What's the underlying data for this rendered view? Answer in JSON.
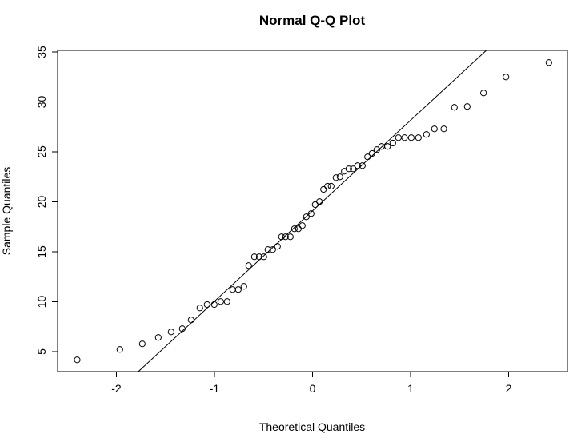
{
  "chart_data": {
    "type": "scatter",
    "title": "Normal Q-Q Plot",
    "xlabel": "Theoretical Quantiles",
    "ylabel": "Sample Quantiles",
    "xlim": [
      -2.6,
      2.6
    ],
    "ylim": [
      3.0,
      35.16
    ],
    "xticks": [
      -2,
      -1,
      0,
      1,
      2
    ],
    "yticks": [
      5,
      10,
      15,
      20,
      25,
      30,
      35
    ],
    "grid": false,
    "marker": "open-circle",
    "reference_line": {
      "intercept": 19.1,
      "slope": 9.06
    },
    "points": [
      [
        -2.4,
        4.18
      ],
      [
        -1.965,
        5.22
      ],
      [
        -1.736,
        5.78
      ],
      [
        -1.573,
        6.42
      ],
      [
        -1.442,
        6.98
      ],
      [
        -1.328,
        7.3
      ],
      [
        -1.238,
        8.18
      ],
      [
        -1.149,
        9.38
      ],
      [
        -1.075,
        9.72
      ],
      [
        -1.002,
        9.72
      ],
      [
        -0.936,
        10.02
      ],
      [
        -0.871,
        10.02
      ],
      [
        -0.814,
        11.22
      ],
      [
        -0.757,
        11.22
      ],
      [
        -0.7,
        11.54
      ],
      [
        -0.651,
        13.62
      ],
      [
        -0.593,
        14.5
      ],
      [
        -0.544,
        14.5
      ],
      [
        -0.496,
        14.5
      ],
      [
        -0.455,
        15.22
      ],
      [
        -0.406,
        15.22
      ],
      [
        -0.357,
        15.54
      ],
      [
        -0.316,
        16.5
      ],
      [
        -0.275,
        16.5
      ],
      [
        -0.226,
        16.5
      ],
      [
        -0.185,
        17.3
      ],
      [
        -0.144,
        17.3
      ],
      [
        -0.104,
        17.62
      ],
      [
        -0.063,
        18.5
      ],
      [
        -0.014,
        18.82
      ],
      [
        0.027,
        19.72
      ],
      [
        0.071,
        20.02
      ],
      [
        0.112,
        21.24
      ],
      [
        0.153,
        21.56
      ],
      [
        0.19,
        21.56
      ],
      [
        0.239,
        22.42
      ],
      [
        0.28,
        22.5
      ],
      [
        0.324,
        23.06
      ],
      [
        0.37,
        23.3
      ],
      [
        0.414,
        23.3
      ],
      [
        0.46,
        23.62
      ],
      [
        0.509,
        23.62
      ],
      [
        0.561,
        24.5
      ],
      [
        0.607,
        24.84
      ],
      [
        0.656,
        25.22
      ],
      [
        0.704,
        25.54
      ],
      [
        0.765,
        25.54
      ],
      [
        0.819,
        25.88
      ],
      [
        0.876,
        26.42
      ],
      [
        0.939,
        26.42
      ],
      [
        1.007,
        26.42
      ],
      [
        1.08,
        26.42
      ],
      [
        1.162,
        26.74
      ],
      [
        1.243,
        27.3
      ],
      [
        1.339,
        27.3
      ],
      [
        1.447,
        29.46
      ],
      [
        1.578,
        29.54
      ],
      [
        1.744,
        30.9
      ],
      [
        1.973,
        32.5
      ],
      [
        2.411,
        33.94
      ]
    ]
  }
}
